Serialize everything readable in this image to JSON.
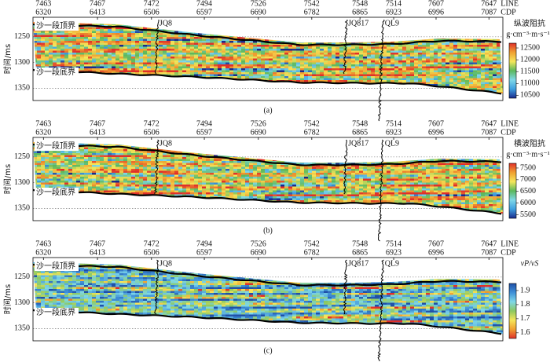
{
  "chart_data": [
    {
      "type": "seismic-section",
      "caption": "(a)",
      "ylabel": "时间/ms",
      "xlim": [
        6302,
        7111
      ],
      "xticks": [
        6320,
        6413,
        6506,
        6597,
        6690,
        6782,
        6865,
        6923,
        6996,
        7087
      ],
      "line_numbers": [
        7463,
        7467,
        7472,
        7494,
        7526,
        7542,
        7548,
        7514,
        7607,
        7647
      ],
      "line_title": "LINE",
      "cdp_title": "CDP",
      "ylim": [
        1212,
        1374
      ],
      "yticks": [
        1250,
        1300,
        1350
      ],
      "horizons": [
        "沙一段顶界",
        "沙一段底界"
      ],
      "wells": [
        {
          "name": "JQ8",
          "x": 6517
        },
        {
          "name": "JQ817",
          "x": 6842
        },
        {
          "name": "QL9",
          "x": 6905
        }
      ],
      "colorbar": {
        "title": "纵波阻抗",
        "unit": "g·cm⁻³·m·s⁻¹",
        "clim": [
          10380,
          12700
        ],
        "ticks": [
          10500,
          11000,
          11500,
          12000,
          12500
        ],
        "colors": [
          "#1a2a8c",
          "#3fa0e0",
          "#7fd8e8",
          "#5cb85c",
          "#f5e65a",
          "#f0a030",
          "#e0302a"
        ]
      }
    },
    {
      "type": "seismic-section",
      "caption": "(b)",
      "ylabel": "时间/ms",
      "xlim": [
        6302,
        7111
      ],
      "xticks": [
        6320,
        6413,
        6506,
        6597,
        6690,
        6782,
        6865,
        6923,
        6996,
        7087
      ],
      "line_numbers": [
        7463,
        7467,
        7472,
        7494,
        7526,
        7542,
        7548,
        7514,
        7607,
        7647
      ],
      "line_title": "LINE",
      "cdp_title": "CDP",
      "ylim": [
        1212,
        1374
      ],
      "yticks": [
        1250,
        1300,
        1350
      ],
      "horizons": [
        "沙一段顶界",
        "沙一段底界"
      ],
      "wells": [
        {
          "name": "JQ8",
          "x": 6517
        },
        {
          "name": "JQ817",
          "x": 6842
        },
        {
          "name": "QL9",
          "x": 6905
        }
      ],
      "colorbar": {
        "title": "横波阻抗",
        "unit": "g·cm⁻³·m·s⁻¹",
        "clim": [
          5350,
          7700
        ],
        "ticks": [
          5500,
          6000,
          6500,
          7000,
          7500
        ],
        "colors": [
          "#1a2a8c",
          "#3fa0e0",
          "#7fd8e8",
          "#5cb85c",
          "#f5e65a",
          "#f0a030",
          "#e0302a"
        ]
      }
    },
    {
      "type": "seismic-section",
      "caption": "(c)",
      "ylabel": "时间/ms",
      "xlim": [
        6302,
        7111
      ],
      "xticks": [
        6320,
        6413,
        6506,
        6597,
        6690,
        6782,
        6865,
        6923,
        6996,
        7087
      ],
      "line_numbers": [
        7463,
        7467,
        7472,
        7494,
        7526,
        7542,
        7548,
        7514,
        7607,
        7647
      ],
      "line_title": "LINE",
      "cdp_title": "CDP",
      "ylim": [
        1212,
        1374
      ],
      "yticks": [
        1250,
        1300,
        1350
      ],
      "horizons": [
        "沙一段顶界",
        "沙一段底界"
      ],
      "wells": [
        {
          "name": "JQ8",
          "x": 6517
        },
        {
          "name": "JQ817",
          "x": 6842
        },
        {
          "name": "QL9",
          "x": 6905
        }
      ],
      "colorbar": {
        "title": "vP/vS",
        "clim": [
          1.56,
          1.95
        ],
        "ticks": [
          1.6,
          1.7,
          1.8,
          1.9
        ],
        "colors": [
          "#e0302a",
          "#f0a030",
          "#f5e65a",
          "#8cc860",
          "#7fd8e8",
          "#3f90d8",
          "#2050a8"
        ]
      }
    }
  ]
}
